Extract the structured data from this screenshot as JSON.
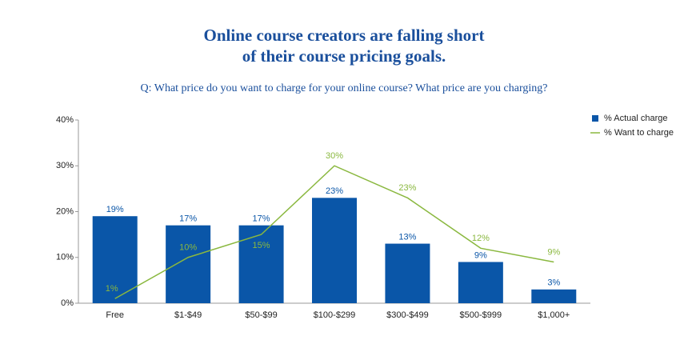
{
  "chart_data": {
    "type": "bar",
    "title": [
      "Online course creators are falling short",
      "of their course pricing goals."
    ],
    "subtitle": "Q: What price do you want to charge for your online course? What price are you charging?",
    "categories": [
      "Free",
      "$1-$49",
      "$50-$99",
      "$100-$299",
      "$300-$499",
      "$500-$999",
      "$1,000+"
    ],
    "series": [
      {
        "name": "% Actual charge",
        "type": "bar",
        "color": "#0a56a8",
        "values": [
          19,
          17,
          17,
          23,
          13,
          9,
          3
        ],
        "value_labels": [
          "19%",
          "17%",
          "17%",
          "23%",
          "13%",
          "9%",
          "3%"
        ]
      },
      {
        "name": "% Want to charge",
        "type": "line",
        "color": "#8ab83f",
        "values": [
          1,
          10,
          15,
          30,
          23,
          12,
          9
        ],
        "value_labels": [
          "1%",
          "10%",
          "15%",
          "30%",
          "23%",
          "12%",
          "9%"
        ]
      }
    ],
    "ylim": [
      0,
      40
    ],
    "yticks": [
      {
        "value": 0,
        "label": "0%"
      },
      {
        "value": 10,
        "label": "10%"
      },
      {
        "value": 20,
        "label": "20%"
      },
      {
        "value": 30,
        "label": "30%"
      },
      {
        "value": 40,
        "label": "40%"
      }
    ],
    "grid": false,
    "legend": "top-right"
  }
}
